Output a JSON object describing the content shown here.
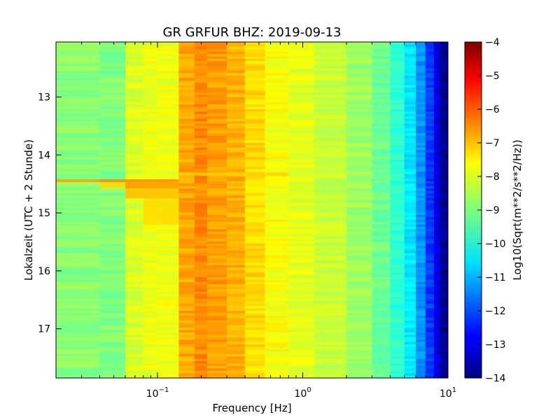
{
  "chart_data": {
    "type": "heatmap",
    "title": "GR GRFUR BHZ: 2019-09-13",
    "xlabel": "Frequency [Hz]",
    "ylabel": "Lokalzeit (UTC + 2 Stunde)",
    "x_scale": "log",
    "xlim": [
      0.02,
      10
    ],
    "x_ticks": [
      {
        "value": 0.1,
        "base": "10",
        "exp": "−1"
      },
      {
        "value": 1,
        "base": "10",
        "exp": "0"
      },
      {
        "value": 10,
        "base": "10",
        "exp": "1"
      }
    ],
    "ylim": [
      12.05,
      17.85
    ],
    "y_inverted": true,
    "y_ticks": [
      {
        "value": 13,
        "label": "13"
      },
      {
        "value": 14,
        "label": "14"
      },
      {
        "value": 15,
        "label": "15"
      },
      {
        "value": 16,
        "label": "16"
      },
      {
        "value": 17,
        "label": "17"
      }
    ],
    "colorbar": {
      "label": "Log10(Sqrt(m**2/s**2/Hz))",
      "range": [
        -14,
        -4
      ],
      "colormap": "jet",
      "ticks": [
        {
          "value": -4,
          "label": "−4"
        },
        {
          "value": -5,
          "label": "−5"
        },
        {
          "value": -6,
          "label": "−6"
        },
        {
          "value": -7,
          "label": "−7"
        },
        {
          "value": -8,
          "label": "−8"
        },
        {
          "value": -9,
          "label": "−9"
        },
        {
          "value": -10,
          "label": "−10"
        },
        {
          "value": -11,
          "label": "−11"
        },
        {
          "value": -12,
          "label": "−12"
        },
        {
          "value": -13,
          "label": "−13"
        },
        {
          "value": -14,
          "label": "−14"
        }
      ]
    },
    "frequency_bands": [
      {
        "f_min": 0.02,
        "f_max": 0.04,
        "value": -8.9
      },
      {
        "f_min": 0.04,
        "f_max": 0.06,
        "value": -9.0
      },
      {
        "f_min": 0.06,
        "f_max": 0.08,
        "value": -8.1
      },
      {
        "f_min": 0.08,
        "f_max": 0.1,
        "value": -7.9
      },
      {
        "f_min": 0.1,
        "f_max": 0.14,
        "value": -7.9
      },
      {
        "f_min": 0.14,
        "f_max": 0.18,
        "value": -6.9
      },
      {
        "f_min": 0.18,
        "f_max": 0.22,
        "value": -6.6
      },
      {
        "f_min": 0.22,
        "f_max": 0.3,
        "value": -6.8
      },
      {
        "f_min": 0.3,
        "f_max": 0.4,
        "value": -7.0
      },
      {
        "f_min": 0.4,
        "f_max": 0.55,
        "value": -7.4
      },
      {
        "f_min": 0.55,
        "f_max": 0.8,
        "value": -7.8
      },
      {
        "f_min": 0.8,
        "f_max": 1.2,
        "value": -8.0
      },
      {
        "f_min": 1.2,
        "f_max": 2.0,
        "value": -8.3
      },
      {
        "f_min": 2.0,
        "f_max": 3.0,
        "value": -8.7
      },
      {
        "f_min": 3.0,
        "f_max": 4.0,
        "value": -9.2
      },
      {
        "f_min": 4.0,
        "f_max": 5.0,
        "value": -9.8
      },
      {
        "f_min": 5.0,
        "f_max": 6.0,
        "value": -10.5
      },
      {
        "f_min": 6.0,
        "f_max": 7.0,
        "value": -11.3
      },
      {
        "f_min": 7.0,
        "f_max": 8.0,
        "value": -12.2
      },
      {
        "f_min": 8.0,
        "f_max": 8.8,
        "value": -13.0
      },
      {
        "f_min": 8.8,
        "f_max": 10.0,
        "value": -13.8
      }
    ],
    "events": [
      {
        "t_start": 14.42,
        "t_end": 14.47,
        "f_min": 0.02,
        "f_max": 0.04,
        "value": -6.8
      },
      {
        "t_start": 14.42,
        "t_end": 14.47,
        "f_min": 0.04,
        "f_max": 0.14,
        "value": -6.6
      },
      {
        "t_start": 14.47,
        "t_end": 14.58,
        "f_min": 0.04,
        "f_max": 0.06,
        "value": -7.4
      },
      {
        "t_start": 14.47,
        "t_end": 14.58,
        "f_min": 0.06,
        "f_max": 0.14,
        "value": -6.7
      },
      {
        "t_start": 14.58,
        "t_end": 14.75,
        "f_min": 0.06,
        "f_max": 0.14,
        "value": -7.1
      },
      {
        "t_start": 14.75,
        "t_end": 15.2,
        "f_min": 0.08,
        "f_max": 0.14,
        "value": -7.4
      },
      {
        "t_start": 14.3,
        "t_end": 14.36,
        "f_min": 0.14,
        "f_max": 0.8,
        "value": -7.3
      }
    ]
  }
}
